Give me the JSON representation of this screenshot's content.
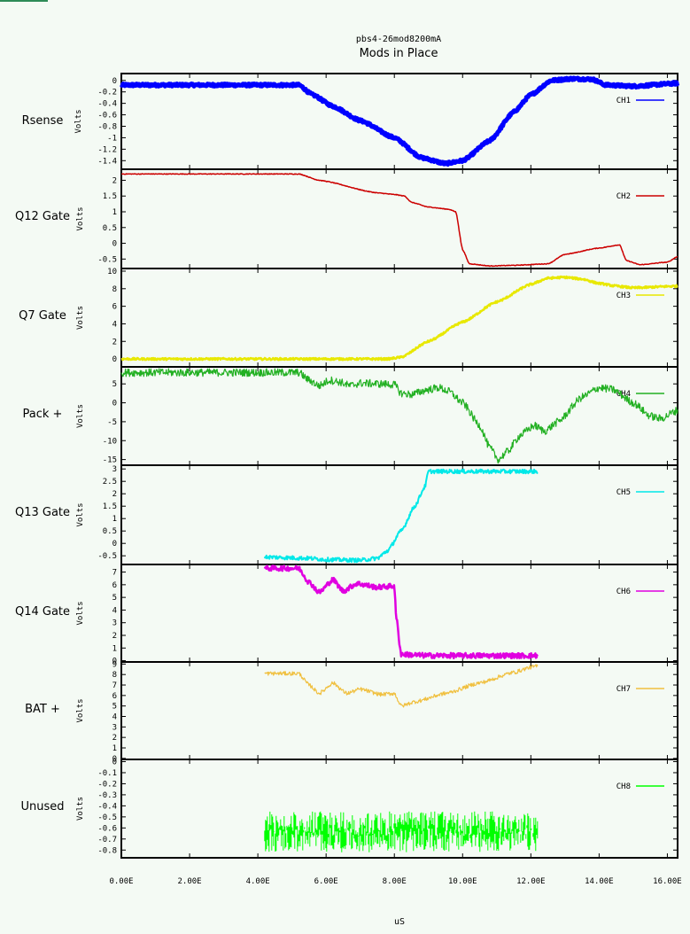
{
  "chart_data": {
    "type": "line",
    "subtitle": "pbs4-26mod8200mA",
    "title": "Mods in Place",
    "xlabel": "uS",
    "xlim": [
      0,
      16.3
    ],
    "xticks": [
      "0.00E",
      "2.00E",
      "4.00E",
      "6.00E",
      "8.00E",
      "10.00E",
      "12.00E",
      "14.00E",
      "16.00E"
    ],
    "xtick_values": [
      0,
      2,
      4,
      6,
      8,
      10,
      12,
      14,
      16
    ],
    "colors": {
      "background": "#f4faf4",
      "ch1": "#0000ff",
      "ch2": "#cc0000",
      "ch3": "#e8e800",
      "ch4": "#22b022",
      "ch5": "#00e8e8",
      "ch6": "#e000e0",
      "ch7": "#f0c040",
      "ch8": "#00ff00"
    },
    "panels": [
      {
        "label": "Rsense",
        "ylabel": "Volts",
        "legend": "CH1",
        "color": "#0000ff",
        "ylim": [
          -1.55,
          0.12
        ],
        "yticks": [
          0,
          -0.2,
          -0.4,
          -0.6,
          -0.8,
          -1,
          -1.2,
          -1.4
        ],
        "ytick_labels": [
          "0",
          "-0.2",
          "-0.4",
          "-0.6",
          "-0.8",
          "-1",
          "-1.2",
          "-1.4"
        ],
        "noise": 0.04,
        "thick": 5,
        "points": [
          [
            0,
            -0.08
          ],
          [
            5.2,
            -0.08
          ],
          [
            5.6,
            -0.25
          ],
          [
            6.2,
            -0.45
          ],
          [
            7,
            -0.7
          ],
          [
            8,
            -1.0
          ],
          [
            8.8,
            -1.35
          ],
          [
            9.5,
            -1.45
          ],
          [
            10,
            -1.4
          ],
          [
            10.8,
            -1.05
          ],
          [
            11.5,
            -0.55
          ],
          [
            12,
            -0.25
          ],
          [
            12.6,
            0.0
          ],
          [
            13.2,
            0.03
          ],
          [
            13.8,
            0.02
          ],
          [
            14.2,
            -0.08
          ],
          [
            15,
            -0.1
          ],
          [
            16.3,
            -0.05
          ]
        ]
      },
      {
        "label": "Q12 Gate",
        "ylabel": "Volts",
        "legend": "CH2",
        "color": "#cc0000",
        "ylim": [
          -0.8,
          2.35
        ],
        "yticks": [
          2,
          1.5,
          1,
          0.5,
          0,
          -0.5
        ],
        "ytick_labels": [
          "2",
          "1.5",
          "1",
          "0.5",
          "0",
          "-0.5"
        ],
        "noise": 0.01,
        "thick": 1.5,
        "points": [
          [
            0,
            2.2
          ],
          [
            5.2,
            2.2
          ],
          [
            5.8,
            2.0
          ],
          [
            7.5,
            1.6
          ],
          [
            8.0,
            1.55
          ],
          [
            8.3,
            1.5
          ],
          [
            8.5,
            1.3
          ],
          [
            9.0,
            1.15
          ],
          [
            9.6,
            1.08
          ],
          [
            9.8,
            1.0
          ],
          [
            10.0,
            -0.2
          ],
          [
            10.2,
            -0.65
          ],
          [
            10.8,
            -0.72
          ],
          [
            11.5,
            -0.7
          ],
          [
            12.5,
            -0.65
          ],
          [
            13.0,
            -0.35
          ],
          [
            14.0,
            -0.15
          ],
          [
            14.6,
            -0.05
          ],
          [
            14.8,
            -0.55
          ],
          [
            15.2,
            -0.68
          ],
          [
            16.0,
            -0.6
          ],
          [
            16.3,
            -0.42
          ]
        ]
      },
      {
        "label": "Q7 Gate",
        "ylabel": "Volts",
        "legend": "CH3",
        "color": "#e8e800",
        "ylim": [
          -0.9,
          10.3
        ],
        "yticks": [
          10,
          8,
          6,
          4,
          2,
          0
        ],
        "ytick_labels": [
          "10",
          "8",
          "6",
          "4",
          "2",
          "0"
        ],
        "noise": 0.03,
        "thick": 2.5,
        "points": [
          [
            0,
            0
          ],
          [
            7.8,
            0
          ],
          [
            8.2,
            0.2
          ],
          [
            9,
            2.0
          ],
          [
            10,
            4.2
          ],
          [
            11,
            6.5
          ],
          [
            12,
            8.5
          ],
          [
            12.5,
            9.2
          ],
          [
            13,
            9.3
          ],
          [
            13.5,
            9.1
          ],
          [
            14,
            8.6
          ],
          [
            14.5,
            8.3
          ],
          [
            15,
            8.1
          ],
          [
            16.3,
            8.3
          ]
        ]
      },
      {
        "label": "Pack +",
        "ylabel": "Volts",
        "legend": "CH4",
        "color": "#22b022",
        "ylim": [
          -16.5,
          9.5
        ],
        "yticks": [
          5,
          0,
          -5,
          -10,
          -15
        ],
        "ytick_labels": [
          "5",
          "0",
          "-5",
          "-10",
          "-15"
        ],
        "noise": 0.12,
        "thick": 1.2,
        "points": [
          [
            0,
            8
          ],
          [
            5.2,
            8
          ],
          [
            5.5,
            6
          ],
          [
            5.8,
            4.5
          ],
          [
            6.1,
            6.0
          ],
          [
            6.4,
            5.5
          ],
          [
            6.7,
            4.5
          ],
          [
            7.0,
            5.2
          ],
          [
            7.6,
            5.0
          ],
          [
            8.0,
            4.8
          ],
          [
            8.2,
            2.5
          ],
          [
            8.5,
            2.2
          ],
          [
            9.0,
            3.5
          ],
          [
            9.3,
            4.0
          ],
          [
            9.6,
            3.0
          ],
          [
            10,
            0
          ],
          [
            10.5,
            -6
          ],
          [
            10.8,
            -12
          ],
          [
            11.05,
            -15
          ],
          [
            11.3,
            -13
          ],
          [
            11.7,
            -8.5
          ],
          [
            12.1,
            -6
          ],
          [
            12.4,
            -7.5
          ],
          [
            12.8,
            -5
          ],
          [
            13.5,
            1.5
          ],
          [
            14,
            4
          ],
          [
            14.4,
            3.5
          ],
          [
            15,
            0
          ],
          [
            15.5,
            -3.5
          ],
          [
            15.8,
            -4.2
          ],
          [
            16.3,
            -2
          ]
        ]
      },
      {
        "label": "Q13 Gate",
        "ylabel": "Volts",
        "legend": "CH5",
        "color": "#00e8e8",
        "ylim": [
          -0.85,
          3.15
        ],
        "yticks": [
          3,
          2.5,
          2,
          1.5,
          1,
          0.5,
          0,
          -0.5
        ],
        "ytick_labels": [
          "3",
          "2.5",
          "2",
          "1.5",
          "1",
          "0.5",
          "0",
          "-0.5"
        ],
        "noise": 0.06,
        "thick": 2,
        "points": [
          [
            4.2,
            -0.55
          ],
          [
            5.5,
            -0.6
          ],
          [
            6.0,
            -0.65
          ],
          [
            7.0,
            -0.68
          ],
          [
            7.5,
            -0.6
          ],
          [
            7.8,
            -0.3
          ],
          [
            8.2,
            0.5
          ],
          [
            8.6,
            1.5
          ],
          [
            8.9,
            2.3
          ],
          [
            9.0,
            2.9
          ],
          [
            10,
            2.9
          ],
          [
            12.2,
            2.9
          ]
        ]
      },
      {
        "label": "Q14 Gate",
        "ylabel": "Volts",
        "legend": "CH6",
        "color": "#e000e0",
        "ylim": [
          -0.1,
          7.6
        ],
        "yticks": [
          7,
          6,
          5,
          4,
          3,
          2,
          1,
          0
        ],
        "ytick_labels": [
          "7",
          "6",
          "5",
          "4",
          "3",
          "2",
          "1",
          "0"
        ],
        "noise": 0.08,
        "thick": 2.5,
        "points": [
          [
            4.2,
            7.3
          ],
          [
            5.2,
            7.3
          ],
          [
            5.5,
            6.2
          ],
          [
            5.8,
            5.4
          ],
          [
            6.2,
            6.4
          ],
          [
            6.5,
            5.5
          ],
          [
            6.9,
            6.1
          ],
          [
            7.5,
            5.8
          ],
          [
            8.0,
            5.9
          ],
          [
            8.05,
            3.5
          ],
          [
            8.2,
            0.5
          ],
          [
            9,
            0.4
          ],
          [
            12.2,
            0.4
          ]
        ]
      },
      {
        "label": "BAT +",
        "ylabel": "Volts",
        "legend": "CH7",
        "color": "#f0c040",
        "ylim": [
          -0.1,
          9.2
        ],
        "yticks": [
          9,
          8,
          7,
          6,
          5,
          4,
          3,
          2,
          1,
          0
        ],
        "ytick_labels": [
          "9",
          "8",
          "7",
          "6",
          "5",
          "4",
          "3",
          "2",
          "1",
          "0"
        ],
        "noise": 0.06,
        "thick": 1.2,
        "points": [
          [
            4.2,
            8.1
          ],
          [
            5.2,
            8.1
          ],
          [
            5.5,
            7.0
          ],
          [
            5.8,
            6.2
          ],
          [
            6.2,
            7.2
          ],
          [
            6.6,
            6.2
          ],
          [
            7.0,
            6.6
          ],
          [
            7.6,
            6.1
          ],
          [
            8.0,
            6.2
          ],
          [
            8.2,
            5.0
          ],
          [
            8.6,
            5.4
          ],
          [
            9.5,
            6.2
          ],
          [
            10.5,
            7.2
          ],
          [
            11.5,
            8.2
          ],
          [
            12.0,
            8.7
          ],
          [
            12.2,
            8.8
          ]
        ]
      },
      {
        "label": "Unused",
        "ylabel": "Volts",
        "legend": "CH8",
        "color": "#00ff00",
        "ylim": [
          -0.87,
          0.02
        ],
        "yticks": [
          0,
          -0.1,
          -0.2,
          -0.3,
          -0.4,
          -0.5,
          -0.6,
          -0.7,
          -0.8
        ],
        "ytick_labels": [
          "0",
          "-0.1",
          "-0.2",
          "-0.3",
          "-0.4",
          "-0.5",
          "-0.6",
          "-0.7",
          "-0.8"
        ],
        "noise": 0.0,
        "thick": 1,
        "spiky": {
          "x_start": 4.2,
          "x_end": 12.2,
          "y_low": -0.82,
          "y_high": -0.45
        },
        "points": [
          [
            4.2,
            -0.62
          ],
          [
            12.2,
            -0.62
          ]
        ]
      }
    ]
  }
}
